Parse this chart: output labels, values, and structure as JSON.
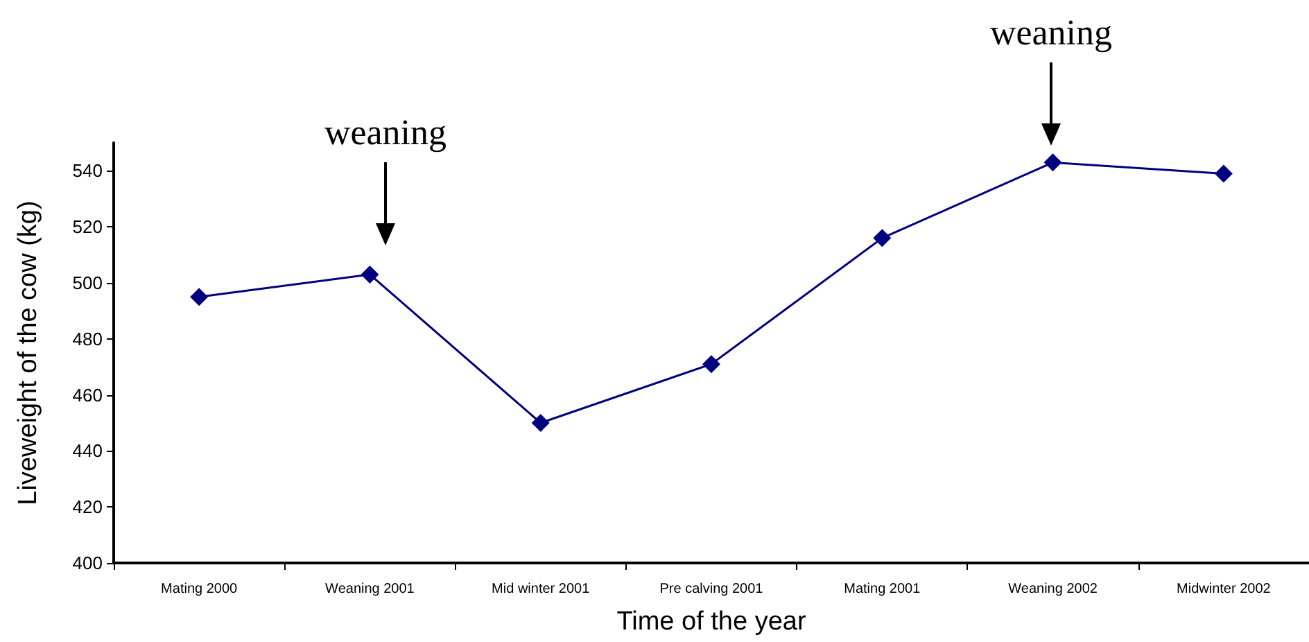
{
  "chart_data": {
    "type": "line",
    "xlabel": "Time of the year",
    "ylabel": "Liveweight of the cow (kg)",
    "categories": [
      "Mating 2000",
      "Weaning 2001",
      "Mid winter 2001",
      "Pre calving 2001",
      "Mating 2001",
      "Weaning 2002",
      "Midwinter 2002"
    ],
    "series": [
      {
        "color": "#000080",
        "values": [
          495,
          503,
          450,
          471,
          516,
          543,
          539
        ]
      }
    ],
    "ylim": [
      400,
      550
    ],
    "yticks": [
      400,
      420,
      440,
      460,
      480,
      500,
      520,
      540
    ],
    "grid": false,
    "marker": "diamond",
    "line_style": "solid",
    "annotations": [
      "weaning",
      "weaning"
    ]
  }
}
